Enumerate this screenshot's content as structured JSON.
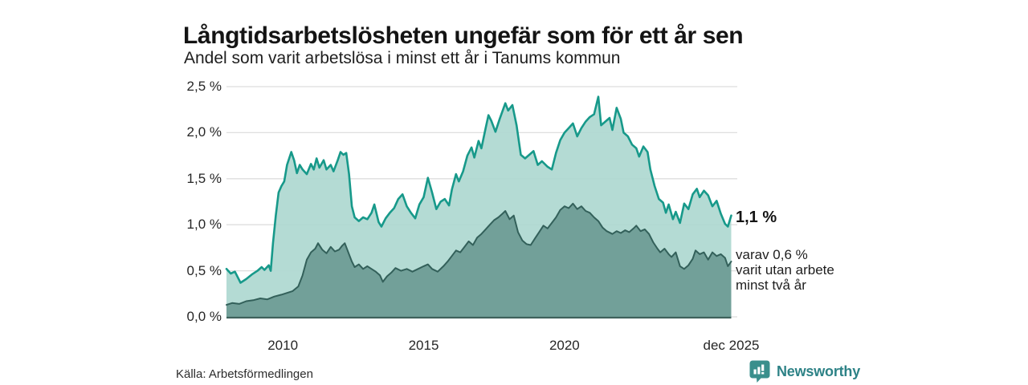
{
  "header": {
    "title": "Långtidsarbetslösheten ungefär som för ett år sen",
    "subtitle": "Andel som varit arbetslösa i minst ett år i Tanums kommun"
  },
  "chart_data": {
    "type": "area",
    "title": "Långtidsarbetslösheten ungefär som för ett år sen",
    "subtitle": "Andel som varit arbetslösa i minst ett år i Tanums kommun",
    "xlim": [
      2008.0,
      2025.92
    ],
    "ylim": [
      0,
      2.5
    ],
    "grid": true,
    "legend_position": "none",
    "x_ticks": [
      {
        "year": 2010,
        "label": "2010"
      },
      {
        "year": 2015,
        "label": "2015"
      },
      {
        "year": 2020,
        "label": "2020"
      },
      {
        "year": 2025.92,
        "label": "dec 2025"
      }
    ],
    "y_ticks": [
      {
        "value": 0.0,
        "label": "0,0 %"
      },
      {
        "value": 0.5,
        "label": "0,5 %"
      },
      {
        "value": 1.0,
        "label": "1,0 %"
      },
      {
        "value": 1.5,
        "label": "1,5 %"
      },
      {
        "value": 2.0,
        "label": "2,0 %"
      },
      {
        "value": 2.5,
        "label": "2,5 %"
      }
    ],
    "colors": {
      "grid": "#dedede",
      "baseline": "#3f625c"
    },
    "series": [
      {
        "name": "Arbetslösa minst ett år",
        "color": "#17998a",
        "fill": "#aed8d0",
        "fill_opacity": 0.92,
        "width": 2.6,
        "end_value": 1.1,
        "x": [
          2008.0,
          2008.15,
          2008.3,
          2008.5,
          2008.7,
          2008.9,
          2009.1,
          2009.25,
          2009.35,
          2009.5,
          2009.57,
          2009.65,
          2009.75,
          2009.85,
          2009.95,
          2010.05,
          2010.15,
          2010.3,
          2010.4,
          2010.5,
          2010.6,
          2010.7,
          2010.85,
          2011.0,
          2011.1,
          2011.2,
          2011.3,
          2011.45,
          2011.55,
          2011.7,
          2011.8,
          2011.95,
          2012.05,
          2012.15,
          2012.25,
          2012.35,
          2012.45,
          2012.55,
          2012.7,
          2012.85,
          2013.0,
          2013.15,
          2013.25,
          2013.4,
          2013.5,
          2013.65,
          2013.8,
          2013.95,
          2014.1,
          2014.25,
          2014.4,
          2014.55,
          2014.7,
          2014.85,
          2015.0,
          2015.15,
          2015.3,
          2015.45,
          2015.6,
          2015.75,
          2015.9,
          2016.0,
          2016.15,
          2016.25,
          2016.4,
          2016.55,
          2016.7,
          2016.8,
          2016.95,
          2017.05,
          2017.2,
          2017.3,
          2017.4,
          2017.55,
          2017.7,
          2017.9,
          2018.0,
          2018.15,
          2018.3,
          2018.45,
          2018.6,
          2018.75,
          2018.9,
          2019.05,
          2019.2,
          2019.4,
          2019.55,
          2019.7,
          2019.85,
          2020.0,
          2020.15,
          2020.3,
          2020.45,
          2020.6,
          2020.75,
          2020.9,
          2021.05,
          2021.2,
          2021.3,
          2021.45,
          2021.6,
          2021.7,
          2021.85,
          2022.0,
          2022.1,
          2022.25,
          2022.4,
          2022.55,
          2022.65,
          2022.8,
          2022.95,
          2023.05,
          2023.2,
          2023.35,
          2023.5,
          2023.6,
          2023.7,
          2023.85,
          2023.95,
          2024.1,
          2024.25,
          2024.4,
          2024.55,
          2024.7,
          2024.8,
          2024.95,
          2025.1,
          2025.25,
          2025.4,
          2025.55,
          2025.7,
          2025.8,
          2025.92
        ],
        "y": [
          0.52,
          0.47,
          0.49,
          0.37,
          0.41,
          0.46,
          0.5,
          0.54,
          0.51,
          0.56,
          0.5,
          0.8,
          1.1,
          1.35,
          1.42,
          1.47,
          1.65,
          1.79,
          1.7,
          1.56,
          1.65,
          1.6,
          1.55,
          1.66,
          1.6,
          1.72,
          1.62,
          1.7,
          1.6,
          1.65,
          1.58,
          1.7,
          1.79,
          1.76,
          1.78,
          1.55,
          1.2,
          1.08,
          1.04,
          1.08,
          1.06,
          1.13,
          1.22,
          1.03,
          0.98,
          1.07,
          1.13,
          1.18,
          1.28,
          1.33,
          1.2,
          1.13,
          1.07,
          1.22,
          1.3,
          1.51,
          1.35,
          1.17,
          1.25,
          1.28,
          1.21,
          1.38,
          1.55,
          1.47,
          1.58,
          1.75,
          1.84,
          1.73,
          1.91,
          1.83,
          2.05,
          2.19,
          2.13,
          2.01,
          2.15,
          2.32,
          2.24,
          2.3,
          2.08,
          1.76,
          1.72,
          1.76,
          1.8,
          1.65,
          1.69,
          1.63,
          1.6,
          1.78,
          1.92,
          2.0,
          2.05,
          2.1,
          1.96,
          2.05,
          2.12,
          2.17,
          2.2,
          2.39,
          2.08,
          2.12,
          2.16,
          2.03,
          2.27,
          2.15,
          2.0,
          1.96,
          1.87,
          1.83,
          1.74,
          1.85,
          1.79,
          1.6,
          1.42,
          1.28,
          1.24,
          1.13,
          1.22,
          1.06,
          1.14,
          1.02,
          1.23,
          1.17,
          1.33,
          1.39,
          1.3,
          1.37,
          1.32,
          1.2,
          1.26,
          1.12,
          1.01,
          0.98,
          1.1
        ]
      },
      {
        "name": "Varav utan arbete minst två år",
        "color": "#33605a",
        "fill": "#6d9b94",
        "fill_opacity": 0.92,
        "width": 2,
        "end_value": 0.6,
        "x": [
          2008.0,
          2008.2,
          2008.45,
          2008.7,
          2008.95,
          2009.2,
          2009.45,
          2009.7,
          2009.95,
          2010.15,
          2010.35,
          2010.55,
          2010.7,
          2010.85,
          2011.0,
          2011.15,
          2011.25,
          2011.4,
          2011.55,
          2011.7,
          2011.85,
          2012.0,
          2012.1,
          2012.2,
          2012.3,
          2012.45,
          2012.55,
          2012.7,
          2012.85,
          2013.0,
          2013.15,
          2013.3,
          2013.45,
          2013.55,
          2013.7,
          2013.85,
          2014.0,
          2014.2,
          2014.4,
          2014.6,
          2014.8,
          2015.0,
          2015.15,
          2015.3,
          2015.5,
          2015.7,
          2015.85,
          2016.0,
          2016.15,
          2016.3,
          2016.45,
          2016.6,
          2016.75,
          2016.9,
          2017.05,
          2017.2,
          2017.35,
          2017.5,
          2017.65,
          2017.8,
          2017.9,
          2018.05,
          2018.2,
          2018.35,
          2018.5,
          2018.65,
          2018.8,
          2018.95,
          2019.1,
          2019.25,
          2019.4,
          2019.55,
          2019.7,
          2019.85,
          2020.0,
          2020.15,
          2020.3,
          2020.45,
          2020.6,
          2020.75,
          2020.9,
          2021.05,
          2021.2,
          2021.35,
          2021.5,
          2021.7,
          2021.85,
          2022.0,
          2022.15,
          2022.3,
          2022.45,
          2022.55,
          2022.7,
          2022.85,
          2023.0,
          2023.15,
          2023.3,
          2023.4,
          2023.55,
          2023.7,
          2023.8,
          2023.95,
          2024.1,
          2024.25,
          2024.4,
          2024.55,
          2024.65,
          2024.8,
          2024.95,
          2025.1,
          2025.25,
          2025.4,
          2025.55,
          2025.7,
          2025.8,
          2025.92
        ],
        "y": [
          0.13,
          0.15,
          0.14,
          0.17,
          0.18,
          0.2,
          0.19,
          0.22,
          0.24,
          0.26,
          0.28,
          0.33,
          0.45,
          0.62,
          0.7,
          0.74,
          0.8,
          0.73,
          0.69,
          0.76,
          0.71,
          0.73,
          0.77,
          0.8,
          0.72,
          0.6,
          0.54,
          0.57,
          0.52,
          0.55,
          0.52,
          0.49,
          0.45,
          0.38,
          0.44,
          0.48,
          0.53,
          0.5,
          0.52,
          0.49,
          0.52,
          0.55,
          0.57,
          0.52,
          0.49,
          0.55,
          0.6,
          0.66,
          0.72,
          0.7,
          0.76,
          0.82,
          0.78,
          0.86,
          0.9,
          0.95,
          1.0,
          1.05,
          1.08,
          1.12,
          1.15,
          1.06,
          1.1,
          0.92,
          0.83,
          0.79,
          0.78,
          0.85,
          0.92,
          0.99,
          0.96,
          1.02,
          1.08,
          1.16,
          1.2,
          1.18,
          1.23,
          1.17,
          1.2,
          1.15,
          1.13,
          1.08,
          1.04,
          0.97,
          0.93,
          0.9,
          0.93,
          0.91,
          0.94,
          0.92,
          0.96,
          0.99,
          0.93,
          0.95,
          0.9,
          0.81,
          0.74,
          0.7,
          0.74,
          0.68,
          0.65,
          0.7,
          0.55,
          0.52,
          0.56,
          0.63,
          0.72,
          0.68,
          0.7,
          0.62,
          0.7,
          0.66,
          0.68,
          0.64,
          0.55,
          0.6
        ]
      }
    ],
    "end_annotation": {
      "main": "1,1 %",
      "note": "varav 0,6 %\nvarit utan arbete\nminst två år"
    }
  },
  "footer": {
    "source": "Källa: Arbetsförmedlingen",
    "brand": "Newsworthy",
    "brand_color": "#2d8286",
    "brand_badge_color": "#3a8f8c"
  }
}
